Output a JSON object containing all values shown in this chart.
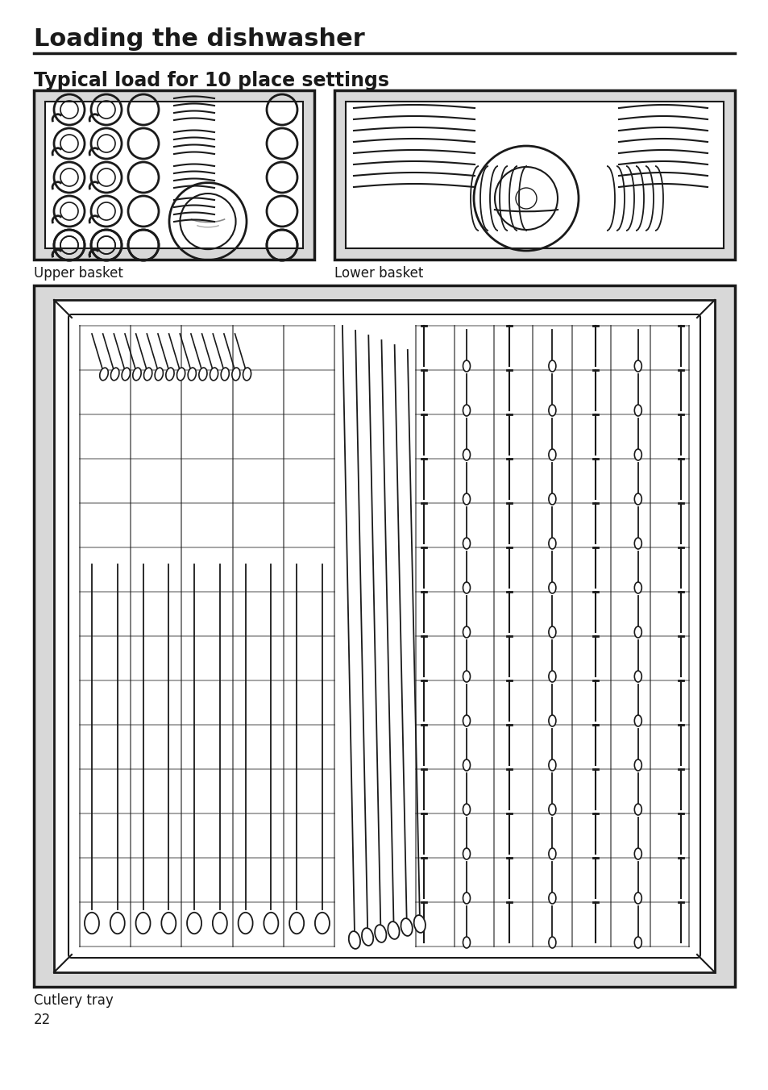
{
  "title": "Loading the dishwasher",
  "subtitle": "Typical load for 10 place settings",
  "label_upper": "Upper basket",
  "label_lower": "Lower basket",
  "label_cutlery": "Cutlery tray",
  "page_number": "22",
  "bg_color": "#ffffff",
  "panel_bg": "#d8d8d8",
  "inner_bg": "#ffffff",
  "line_color": "#1a1a1a",
  "title_fontsize": 22,
  "subtitle_fontsize": 17,
  "label_fontsize": 12,
  "page_fontsize": 12
}
